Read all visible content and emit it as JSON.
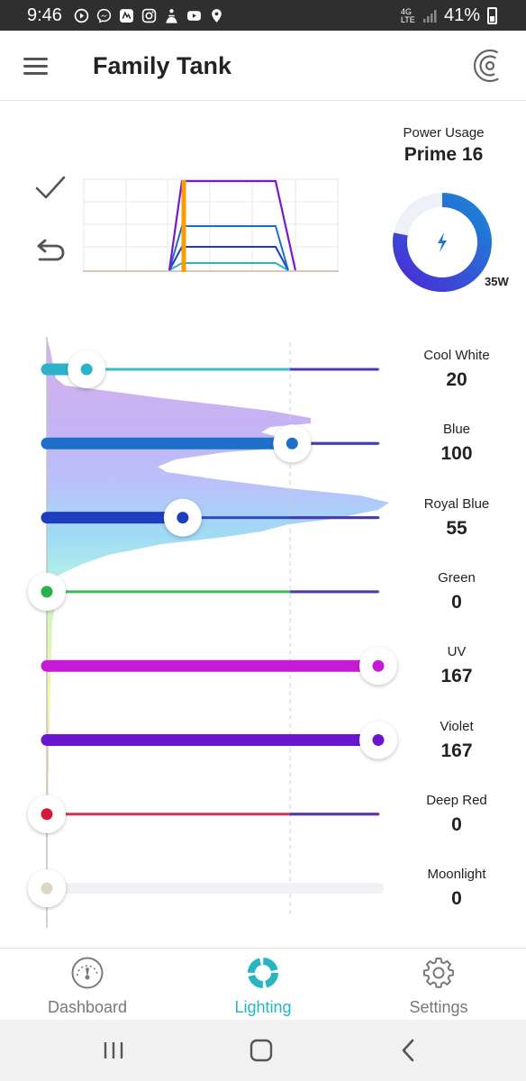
{
  "status_bar": {
    "time": "9:46",
    "network_label": "4G LTE",
    "battery": "41%"
  },
  "header": {
    "title": "Family Tank",
    "menu_icon": "hamburger-menu-icon",
    "connection_icon": "wireless-signal-icon"
  },
  "schedule": {
    "confirm_icon": "checkmark-icon",
    "undo_icon": "undo-icon"
  },
  "power": {
    "label": "Power Usage",
    "device": "Prime 16",
    "watts": "35W",
    "fraction": 0.78,
    "icon": "lightning-bolt-icon",
    "colors": {
      "arc_start": "#4a2bd6",
      "arc_end": "#1a88d6",
      "track": "#eef2f8"
    }
  },
  "channels": [
    {
      "name": "Cool White",
      "value": "20",
      "level": 0.12,
      "color": "#2bb4c9"
    },
    {
      "name": "Blue",
      "value": "100",
      "level": 0.74,
      "color": "#1e6fc9"
    },
    {
      "name": "Royal Blue",
      "value": "55",
      "level": 0.41,
      "color": "#1d3fbf"
    },
    {
      "name": "Green",
      "value": "0",
      "level": 0.0,
      "color": "#27b34a"
    },
    {
      "name": "UV",
      "value": "167",
      "level": 1.0,
      "color": "#c81ad6"
    },
    {
      "name": "Violet",
      "value": "167",
      "level": 1.0,
      "color": "#6a16cf"
    },
    {
      "name": "Deep Red",
      "value": "0",
      "level": 0.0,
      "color": "#d11a3c"
    },
    {
      "name": "Moonlight",
      "value": "0",
      "level": 0.0,
      "color": "#dcd6bf"
    }
  ],
  "nav": {
    "items": [
      {
        "label": "Dashboard",
        "icon": "gauge-icon"
      },
      {
        "label": "Lighting",
        "icon": "lighting-ring-icon"
      },
      {
        "label": "Settings",
        "icon": "gear-icon"
      }
    ],
    "active": "Lighting",
    "accent": "#27b5c4"
  },
  "system_nav": {
    "recents_icon": "recents-icon",
    "home_icon": "home-icon",
    "back_icon": "back-icon"
  }
}
